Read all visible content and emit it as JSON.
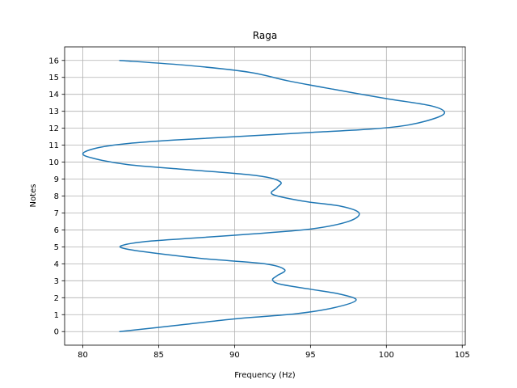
{
  "chart_data": {
    "type": "line",
    "title": "Raga",
    "xlabel": "Frequency (Hz)",
    "ylabel": "Notes",
    "xlim": [
      78.8,
      105.2
    ],
    "ylim": [
      -0.8,
      16.8
    ],
    "xticks": [
      80,
      85,
      90,
      95,
      100,
      105
    ],
    "yticks": [
      0,
      1,
      2,
      3,
      4,
      5,
      6,
      7,
      8,
      9,
      10,
      11,
      12,
      13,
      14,
      15,
      16
    ],
    "grid": true,
    "series": [
      {
        "color": "#1f77b4",
        "points": [
          [
            82.4,
            0.0
          ],
          [
            86.0,
            0.35
          ],
          [
            90.0,
            0.75
          ],
          [
            94.0,
            1.05
          ],
          [
            96.5,
            1.4
          ],
          [
            98.0,
            1.85
          ],
          [
            97.0,
            2.2
          ],
          [
            95.0,
            2.5
          ],
          [
            93.0,
            2.8
          ],
          [
            92.5,
            3.05
          ],
          [
            92.8,
            3.3
          ],
          [
            93.3,
            3.65
          ],
          [
            92.0,
            4.0
          ],
          [
            88.0,
            4.3
          ],
          [
            85.0,
            4.6
          ],
          [
            83.0,
            4.85
          ],
          [
            82.5,
            5.05
          ],
          [
            84.0,
            5.3
          ],
          [
            87.0,
            5.5
          ],
          [
            91.0,
            5.75
          ],
          [
            95.0,
            6.05
          ],
          [
            97.5,
            6.5
          ],
          [
            98.2,
            7.0
          ],
          [
            97.0,
            7.4
          ],
          [
            94.5,
            7.7
          ],
          [
            92.5,
            8.1
          ],
          [
            92.8,
            8.5
          ],
          [
            93.0,
            8.85
          ],
          [
            91.5,
            9.2
          ],
          [
            87.0,
            9.55
          ],
          [
            83.0,
            9.85
          ],
          [
            80.8,
            10.2
          ],
          [
            80.0,
            10.5
          ],
          [
            81.0,
            10.85
          ],
          [
            83.0,
            11.1
          ],
          [
            86.0,
            11.3
          ],
          [
            90.0,
            11.5
          ],
          [
            95.0,
            11.75
          ],
          [
            99.0,
            11.95
          ],
          [
            101.5,
            12.2
          ],
          [
            103.4,
            12.65
          ],
          [
            103.8,
            13.0
          ],
          [
            102.8,
            13.35
          ],
          [
            100.0,
            13.75
          ],
          [
            96.5,
            14.3
          ],
          [
            93.5,
            14.8
          ],
          [
            91.0,
            15.3
          ],
          [
            87.0,
            15.7
          ],
          [
            82.4,
            16.0
          ]
        ]
      }
    ]
  }
}
